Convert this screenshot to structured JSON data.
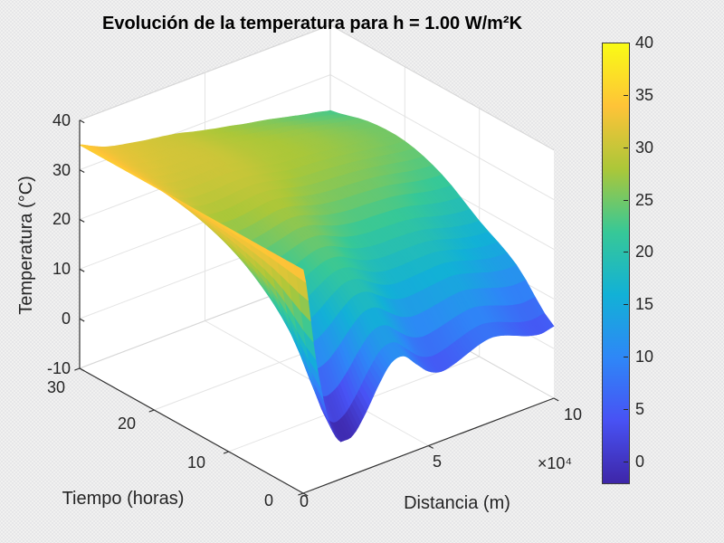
{
  "figure": {
    "background": "#ebebeb",
    "wall_color": "#ffffff",
    "grid_color": "#e4e4e4",
    "box_edge_color": "#d6d6d6",
    "axis_color": "#303030",
    "text_color": "#252525"
  },
  "chart_data": {
    "type": "surface",
    "title": "Evolución de la temperatura para h = 1.00 W/m²K",
    "xlabel": "Distancia (m)",
    "ylabel": "Tiempo (horas)",
    "zlabel": "Temperatura (°C)",
    "x_unit_multiplier": "×10⁴",
    "x_scale_note": "x values are in units of 10^4 m",
    "x": [
      0,
      0.5,
      1,
      1.5,
      2,
      2.5,
      3,
      3.5,
      4,
      4.5,
      5,
      5.5,
      6,
      6.5,
      7,
      7.5,
      8,
      8.5,
      9,
      9.5,
      10
    ],
    "t": [
      0,
      5,
      10,
      15,
      20,
      25,
      30
    ],
    "temperature": [
      [
        35,
        16,
        3,
        -2.5,
        -2,
        1.5,
        6,
        9.5,
        10,
        7.5,
        5,
        4,
        4.5,
        5.5,
        6.5,
        7,
        6.5,
        5.5,
        4.5,
        4,
        4.5
      ],
      [
        35,
        23.9,
        16.1,
        12.7,
        12.8,
        14.5,
        16.9,
        18.7,
        18.7,
        17,
        15.3,
        14.5,
        14.6,
        14.9,
        15.2,
        15.3,
        14.7,
        13.9,
        13.1,
        12.6,
        12.6
      ],
      [
        35,
        28.4,
        23.7,
        21.5,
        21.3,
        22.1,
        23.1,
        23.9,
        23.7,
        22.5,
        21.3,
        20.6,
        20.3,
        20.3,
        20.2,
        20,
        19.5,
        18.7,
        18,
        17.5,
        17.3
      ],
      [
        35,
        31,
        28.2,
        26.9,
        26.6,
        26.9,
        27.4,
        27.8,
        27.5,
        26.7,
        25.9,
        25.4,
        25.1,
        25,
        24.8,
        24.6,
        24.2,
        23.6,
        23,
        22.6,
        22.4
      ],
      [
        35,
        32.6,
        30.9,
        29.9,
        29.7,
        29.7,
        29.9,
        29.9,
        29.6,
        29,
        28.4,
        27.9,
        27.7,
        27.5,
        27.2,
        26.9,
        26.5,
        26.1,
        25.7,
        25.2,
        25
      ],
      [
        35,
        33.4,
        32.1,
        31.5,
        31,
        30.8,
        30.7,
        30.5,
        30.1,
        29.5,
        28.9,
        28.5,
        28.1,
        27.8,
        27.4,
        27.1,
        26.6,
        26.1,
        25.6,
        25.1,
        24.8
      ],
      [
        35,
        33.8,
        32.7,
        32,
        31.5,
        31,
        30.6,
        30.2,
        29.7,
        29,
        28.4,
        27.8,
        27.3,
        26.7,
        26.2,
        25.7,
        25.1,
        24.5,
        23.9,
        23.4,
        22.8
      ]
    ],
    "xticks": [
      0,
      5,
      10
    ],
    "yticks": [
      0,
      10,
      20,
      30
    ],
    "zticks": [
      -10,
      0,
      10,
      20,
      30,
      40
    ],
    "xlim": [
      0,
      10
    ],
    "ylim": [
      0,
      30
    ],
    "zlim": [
      -10,
      40
    ],
    "caxis": [
      -2,
      40
    ],
    "grid": true,
    "view": {
      "azimuth": -37.5,
      "elevation": 30
    },
    "colorbar": {
      "ticks": [
        0,
        5,
        10,
        15,
        20,
        25,
        30,
        35,
        40
      ],
      "colormap": "parula",
      "stops": [
        "#3e26a8",
        "#4852f4",
        "#2e87f7",
        "#12b1d6",
        "#37c897",
        "#abc739",
        "#fec338",
        "#f9fb15"
      ]
    }
  }
}
